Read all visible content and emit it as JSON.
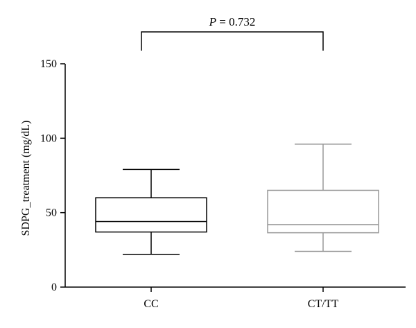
{
  "chart_data": {
    "type": "boxplot",
    "ylabel": "SDPG_treatment (mg/dL)",
    "xlabel": "",
    "ylim": [
      0,
      150
    ],
    "yticks": [
      0,
      50,
      100,
      150
    ],
    "categories": [
      "CC",
      "CT/TT"
    ],
    "boxes": [
      {
        "category": "CC",
        "min": 22,
        "q1": 37,
        "median": 44,
        "q3": 60,
        "max": 79,
        "color": "#000000"
      },
      {
        "category": "CT/TT",
        "min": 24,
        "q1": 36.5,
        "median": 42,
        "q3": 65,
        "max": 96,
        "color": "#999999"
      }
    ],
    "annotation": {
      "label": "P",
      "text": " = 0.732"
    },
    "grid": false,
    "legend": "none"
  }
}
